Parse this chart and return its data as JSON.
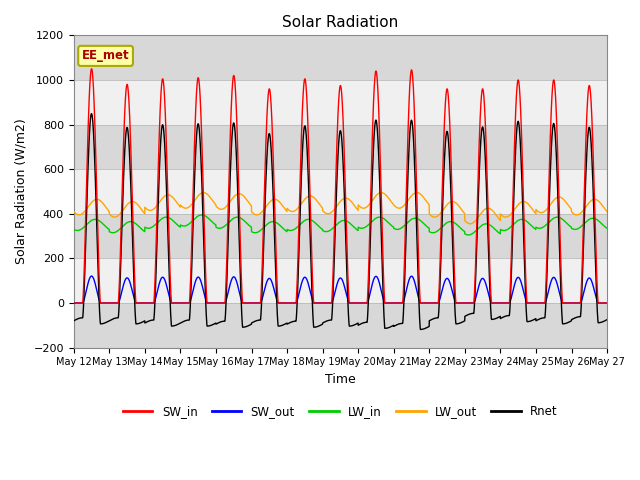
{
  "title": "Solar Radiation",
  "ylabel": "Solar Radiation (W/m2)",
  "xlabel": "Time",
  "ylim": [
    -200,
    1200
  ],
  "annotation": "EE_met",
  "num_days": 15,
  "colors": {
    "SW_in": "#FF0000",
    "SW_out": "#0000FF",
    "LW_in": "#00CC00",
    "LW_out": "#FFA500",
    "Rnet": "#000000"
  },
  "x_tick_labels": [
    "May 12",
    "May 13",
    "May 14",
    "May 15",
    "May 16",
    "May 17",
    "May 18",
    "May 19",
    "May 20",
    "May 21",
    "May 22",
    "May 23",
    "May 24",
    "May 25",
    "May 26",
    "May 27"
  ],
  "band_colors": [
    "#D8D8D8",
    "#F0F0F0"
  ],
  "grid_color": "#BBBBBB"
}
